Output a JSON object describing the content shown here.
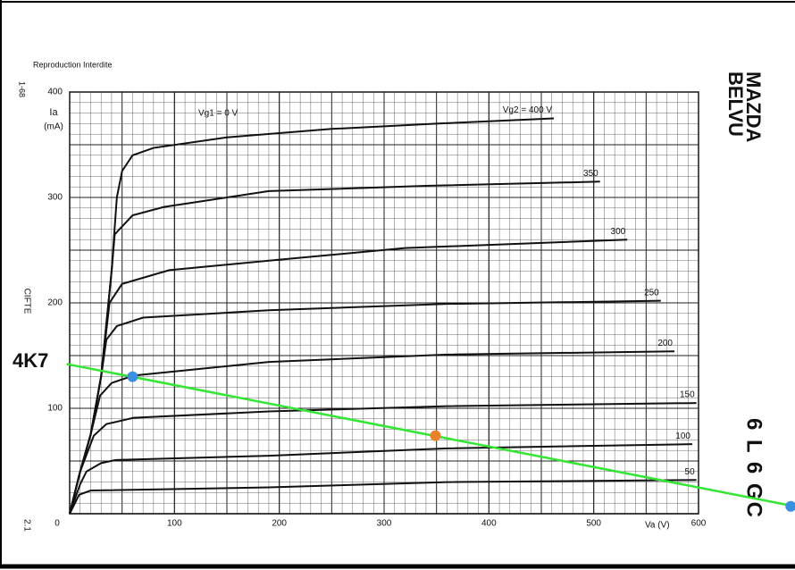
{
  "chart_data": {
    "type": "line",
    "xlabel": "Va (V)",
    "ylabel": [
      "Ia",
      "(mA)"
    ],
    "labels": {
      "publisher": "Reproduction Interdite",
      "brand": [
        "MAZDA",
        "BELVU"
      ],
      "tube": "6 L 6 GC",
      "code": "1-68",
      "stamp": "CIFTE",
      "page": "2.1",
      "load": "4K7",
      "vg1": "Vg1 = 0 V"
    },
    "xlim": [
      0,
      600
    ],
    "ylim": [
      0,
      400
    ],
    "xticks": [
      0,
      100,
      200,
      300,
      400,
      500,
      600
    ],
    "yticks": [
      100,
      200,
      300,
      400
    ],
    "grid": true,
    "color": "#111111",
    "series": [
      {
        "name": "Vg2 = 400 V",
        "x": [
          0,
          10,
          20,
          30,
          40,
          45,
          50,
          60,
          80,
          150,
          250,
          350,
          462
        ],
        "values": [
          0,
          40,
          75,
          130,
          230,
          300,
          325,
          340,
          347,
          357,
          365,
          370,
          375
        ]
      },
      {
        "name": "350",
        "x": [
          0,
          10,
          20,
          30,
          40,
          43,
          60,
          90,
          190,
          340,
          506
        ],
        "values": [
          0,
          40,
          75,
          130,
          230,
          265,
          283,
          291,
          306,
          311,
          315
        ]
      },
      {
        "name": "300",
        "x": [
          0,
          10,
          20,
          30,
          38,
          50,
          95,
          190,
          320,
          532
        ],
        "values": [
          0,
          40,
          75,
          130,
          200,
          218,
          231,
          240,
          252,
          260
        ]
      },
      {
        "name": "250",
        "x": [
          0,
          10,
          20,
          30,
          35,
          45,
          70,
          190,
          360,
          564
        ],
        "values": [
          0,
          40,
          75,
          130,
          165,
          178,
          186,
          193,
          199,
          202
        ]
      },
      {
        "name": "200",
        "x": [
          0,
          10,
          20,
          29,
          40,
          61,
          190,
          360,
          577
        ],
        "values": [
          0,
          40,
          75,
          112,
          124,
          131,
          144,
          151,
          154
        ]
      },
      {
        "name": "150",
        "x": [
          0,
          10,
          23,
          35,
          61,
          190,
          360,
          598
        ],
        "values": [
          0,
          40,
          74,
          85,
          91,
          97,
          102,
          105
        ]
      },
      {
        "name": "100",
        "x": [
          0,
          10,
          16,
          30,
          44,
          190,
          360,
          594
        ],
        "values": [
          0,
          28,
          40,
          48,
          51,
          55,
          62,
          66
        ]
      },
      {
        "name": "50",
        "x": [
          0,
          9,
          20,
          190,
          360,
          598
        ],
        "values": [
          0,
          18,
          22,
          25,
          30,
          32
        ]
      }
    ],
    "load_line": {
      "color": "#33e633",
      "x": [
        -3,
        692
      ],
      "values": [
        142,
        7
      ]
    },
    "points": [
      {
        "color": "#3b8fe0",
        "x": 60,
        "value": 130
      },
      {
        "color": "#e8822a",
        "x": 349,
        "value": 74
      },
      {
        "color": "#3b8fe0",
        "x": 688,
        "value": 7
      }
    ]
  }
}
